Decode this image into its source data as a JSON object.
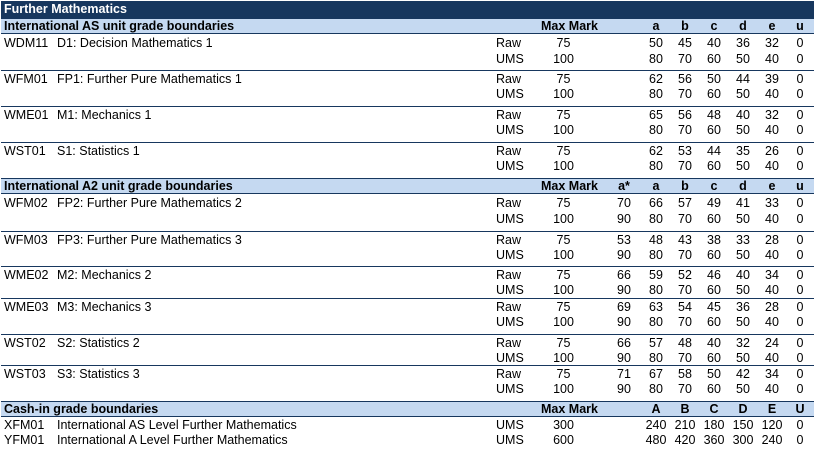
{
  "title": "Further Mathematics",
  "sections": {
    "as": {
      "heading": "International AS unit grade boundaries",
      "cols": {
        "max": "Max Mark",
        "a": "a",
        "b": "b",
        "c": "c",
        "d": "d",
        "e": "e",
        "u": "u"
      },
      "units": [
        {
          "code": "WDM11",
          "name": "D1: Decision Mathematics 1",
          "raw": {
            "type": "Raw",
            "max": "75",
            "a": "50",
            "b": "45",
            "c": "40",
            "d": "36",
            "e": "32",
            "u": "0"
          },
          "ums": {
            "type": "UMS",
            "max": "100",
            "a": "80",
            "b": "70",
            "c": "60",
            "d": "50",
            "e": "40",
            "u": "0"
          }
        },
        {
          "code": "WFM01",
          "name": "FP1: Further Pure Mathematics 1",
          "raw": {
            "type": "Raw",
            "max": "75",
            "a": "62",
            "b": "56",
            "c": "50",
            "d": "44",
            "e": "39",
            "u": "0"
          },
          "ums": {
            "type": "UMS",
            "max": "100",
            "a": "80",
            "b": "70",
            "c": "60",
            "d": "50",
            "e": "40",
            "u": "0"
          }
        },
        {
          "code": "WME01",
          "name": "M1: Mechanics 1",
          "raw": {
            "type": "Raw",
            "max": "75",
            "a": "65",
            "b": "56",
            "c": "48",
            "d": "40",
            "e": "32",
            "u": "0"
          },
          "ums": {
            "type": "UMS",
            "max": "100",
            "a": "80",
            "b": "70",
            "c": "60",
            "d": "50",
            "e": "40",
            "u": "0"
          }
        },
        {
          "code": "WST01",
          "name": "S1: Statistics 1",
          "raw": {
            "type": "Raw",
            "max": "75",
            "a": "62",
            "b": "53",
            "c": "44",
            "d": "35",
            "e": "26",
            "u": "0"
          },
          "ums": {
            "type": "UMS",
            "max": "100",
            "a": "80",
            "b": "70",
            "c": "60",
            "d": "50",
            "e": "40",
            "u": "0"
          }
        }
      ]
    },
    "a2": {
      "heading": "International A2 unit grade boundaries",
      "cols": {
        "max": "Max Mark",
        "astar": "a*",
        "a": "a",
        "b": "b",
        "c": "c",
        "d": "d",
        "e": "e",
        "u": "u"
      },
      "units": [
        {
          "code": "WFM02",
          "name": "FP2: Further Pure Mathematics 2",
          "raw": {
            "type": "Raw",
            "max": "75",
            "astar": "70",
            "a": "66",
            "b": "57",
            "c": "49",
            "d": "41",
            "e": "33",
            "u": "0"
          },
          "ums": {
            "type": "UMS",
            "max": "100",
            "astar": "90",
            "a": "80",
            "b": "70",
            "c": "60",
            "d": "50",
            "e": "40",
            "u": "0"
          }
        },
        {
          "code": "WFM03",
          "name": "FP3: Further Pure Mathematics 3",
          "raw": {
            "type": "Raw",
            "max": "75",
            "astar": "53",
            "a": "48",
            "b": "43",
            "c": "38",
            "d": "33",
            "e": "28",
            "u": "0"
          },
          "ums": {
            "type": "UMS",
            "max": "100",
            "astar": "90",
            "a": "80",
            "b": "70",
            "c": "60",
            "d": "50",
            "e": "40",
            "u": "0"
          }
        },
        {
          "code": "WME02",
          "name": "M2: Mechanics 2",
          "raw": {
            "type": "Raw",
            "max": "75",
            "astar": "66",
            "a": "59",
            "b": "52",
            "c": "46",
            "d": "40",
            "e": "34",
            "u": "0"
          },
          "ums": {
            "type": "UMS",
            "max": "100",
            "astar": "90",
            "a": "80",
            "b": "70",
            "c": "60",
            "d": "50",
            "e": "40",
            "u": "0"
          }
        },
        {
          "code": "WME03",
          "name": "M3: Mechanics 3",
          "raw": {
            "type": "Raw",
            "max": "75",
            "astar": "69",
            "a": "63",
            "b": "54",
            "c": "45",
            "d": "36",
            "e": "28",
            "u": "0"
          },
          "ums": {
            "type": "UMS",
            "max": "100",
            "astar": "90",
            "a": "80",
            "b": "70",
            "c": "60",
            "d": "50",
            "e": "40",
            "u": "0"
          }
        },
        {
          "code": "WST02",
          "name": "S2: Statistics 2",
          "raw": {
            "type": "Raw",
            "max": "75",
            "astar": "66",
            "a": "57",
            "b": "48",
            "c": "40",
            "d": "32",
            "e": "24",
            "u": "0"
          },
          "ums": {
            "type": "UMS",
            "max": "100",
            "astar": "90",
            "a": "80",
            "b": "70",
            "c": "60",
            "d": "50",
            "e": "40",
            "u": "0"
          }
        },
        {
          "code": "WST03",
          "name": "S3: Statistics 3",
          "raw": {
            "type": "Raw",
            "max": "75",
            "astar": "71",
            "a": "67",
            "b": "58",
            "c": "50",
            "d": "42",
            "e": "34",
            "u": "0"
          },
          "ums": {
            "type": "UMS",
            "max": "100",
            "astar": "90",
            "a": "80",
            "b": "70",
            "c": "60",
            "d": "50",
            "e": "40",
            "u": "0"
          }
        }
      ]
    },
    "cashin": {
      "heading": "Cash-in grade boundaries",
      "cols": {
        "max": "Max Mark",
        "a": "A",
        "b": "B",
        "c": "C",
        "d": "D",
        "e": "E",
        "u": "U"
      },
      "units": [
        {
          "code": "XFM01",
          "name": "International AS Level Further Mathematics",
          "ums": {
            "type": "UMS",
            "max": "300",
            "a": "240",
            "b": "210",
            "c": "180",
            "d": "150",
            "e": "120",
            "u": "0"
          }
        },
        {
          "code": "YFM01",
          "name": "International A Level Further Mathematics",
          "ums": {
            "type": "UMS",
            "max": "600",
            "a": "480",
            "b": "420",
            "c": "360",
            "d": "300",
            "e": "240",
            "u": "0"
          }
        }
      ]
    }
  }
}
